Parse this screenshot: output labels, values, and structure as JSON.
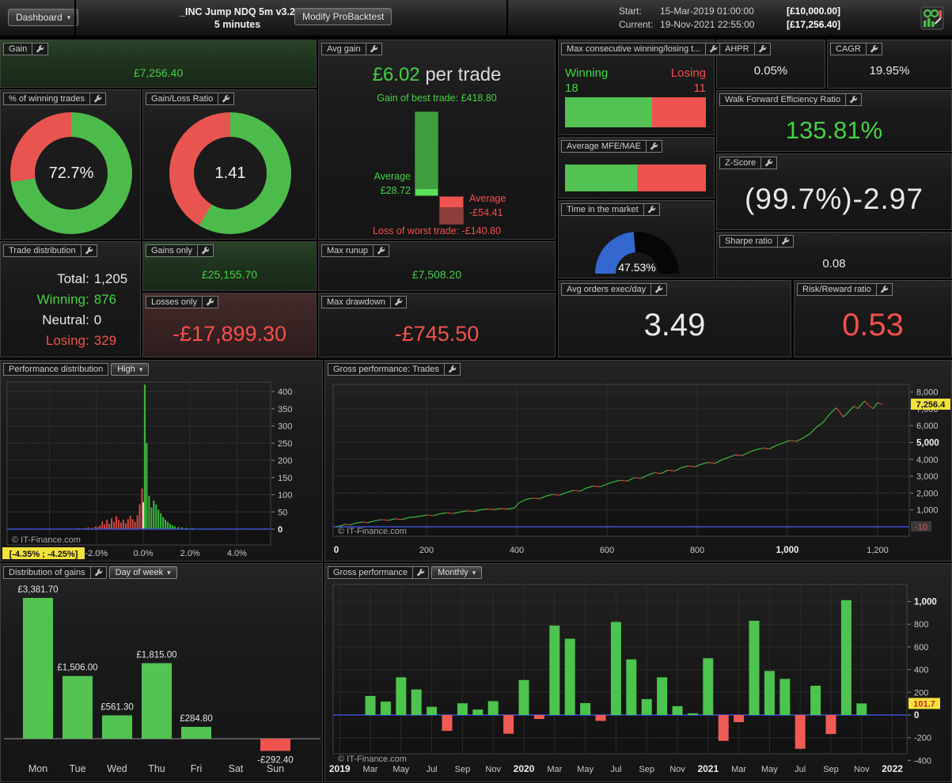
{
  "topbar": {
    "dashboard_label": "Dashboard",
    "title": "_INC Jump NDQ 5m v3.2",
    "subtitle": "5 minutes",
    "modify_button": "Modify ProBacktest",
    "start_label": "Start:",
    "start_value": "15-Mar-2019 01:00:00",
    "start_capital": "[£10,000.00]",
    "current_label": "Current:",
    "current_value": "19-Nov-2021 22:55:00",
    "current_capital": "[£17,256.40]"
  },
  "colors": {
    "green_text": "#45d145",
    "red_text": "#f2524e",
    "donut_green": "#4cbb4c",
    "donut_red": "#e85550",
    "bar_green": "#53c353",
    "bar_red": "#ef5350",
    "gauge_blue": "#3568cf",
    "zero_line_blue": "#3c4fd0",
    "tag_yellow": "#f2e33c",
    "hist_red": "#cf4a46",
    "hist_green": "#3dbb3d",
    "hist_white": "#d9d9d9"
  },
  "panels": {
    "gain": {
      "title": "Gain",
      "value": "£7,256.40"
    },
    "winning_trades": {
      "title": "% of winning trades",
      "value": "72.7%",
      "green_pct": 72.7
    },
    "gain_loss": {
      "title": "Gain/Loss Ratio",
      "value": "1.41",
      "green_pct": 58.5
    },
    "avg_gain": {
      "title": "Avg gain",
      "value": "£6.02",
      "suffix": " per trade",
      "best_trade": "Gain of best trade: £418.80",
      "avg_win_line1": "Average",
      "avg_win_line2": "£28.72",
      "avg_loss_line1": "Average",
      "avg_loss_line2": "-£54.41",
      "worst_trade": "Loss of worst trade: -£140.80"
    },
    "max_consecutive": {
      "title": "Max consecutive winning/losing t...",
      "winning_label": "Winning",
      "winning_value": "18",
      "losing_label": "Losing",
      "losing_value": "11",
      "green_pct": 62
    },
    "ahpr": {
      "title": "AHPR",
      "value": "0.05%"
    },
    "cagr": {
      "title": "CAGR",
      "value": "19.95%"
    },
    "walk_forward": {
      "title": "Walk Forward Efficiency Ratio",
      "value": "135.81%"
    },
    "mfe_mae": {
      "title": "Average MFE/MAE",
      "green_pct": 51
    },
    "z_score": {
      "title": "Z-Score",
      "value": "(99.7%)-2.97"
    },
    "time_in_market": {
      "title": "Time in the market",
      "value": "47.53%",
      "pct": 47.53
    },
    "sharpe": {
      "title": "Sharpe ratio",
      "value": "0.08"
    },
    "trade_distribution": {
      "title": "Trade distribution",
      "rows": [
        {
          "label": "Total:",
          "value": "1,205",
          "color": "white"
        },
        {
          "label": "Winning:",
          "value": "876",
          "color": "green"
        },
        {
          "label": "Neutral:",
          "value": "0",
          "color": "white"
        },
        {
          "label": "Losing:",
          "value": "329",
          "color": "red"
        }
      ]
    },
    "gains_only": {
      "title": "Gains only",
      "value": "£25,155.70"
    },
    "losses_only": {
      "title": "Losses only",
      "value": "-£17,899.30"
    },
    "max_runup": {
      "title": "Max runup",
      "value": "£7,508.20"
    },
    "max_drawdown": {
      "title": "Max drawdown",
      "value": "-£745.50"
    },
    "avg_orders": {
      "title": "Avg orders exec/day",
      "value": "3.49"
    },
    "risk_reward": {
      "title": "Risk/Reward ratio",
      "value": "0.53"
    }
  },
  "chart_data": [
    {
      "id": "performance_distribution",
      "type": "bar",
      "title": "Performance distribution",
      "dropdown": "High",
      "watermark": "© IT-Finance.com",
      "highlight_label": "[-4.35% ; -4.25%]",
      "ylim": [
        0,
        430
      ],
      "xlim": [
        -5.8,
        5.6
      ],
      "yticks": [
        [
          0,
          "0",
          true
        ],
        [
          50,
          "50",
          false
        ],
        [
          100,
          "100",
          false
        ],
        [
          150,
          "150",
          false
        ],
        [
          200,
          "200",
          false
        ],
        [
          250,
          "250",
          false
        ],
        [
          300,
          "300",
          false
        ],
        [
          350,
          "350",
          false
        ],
        [
          400,
          "400",
          false
        ]
      ],
      "xticks": [
        [
          -2,
          "-2.0%"
        ],
        [
          0,
          "0.0%"
        ],
        [
          2,
          "2.0%"
        ],
        [
          4,
          "4.0%"
        ]
      ],
      "grid_x": [
        -4,
        -2,
        0,
        2,
        4
      ],
      "bars": [
        [
          -4.3,
          2,
          "r"
        ],
        [
          -3.6,
          2,
          "r"
        ],
        [
          -3.1,
          2,
          "r"
        ],
        [
          -2.75,
          3,
          "r"
        ],
        [
          -2.5,
          3,
          "r"
        ],
        [
          -2.35,
          5,
          "r"
        ],
        [
          -2.2,
          4,
          "r"
        ],
        [
          -2.05,
          7,
          "r"
        ],
        [
          -1.95,
          6,
          "r"
        ],
        [
          -1.85,
          11,
          "r"
        ],
        [
          -1.75,
          22,
          "r"
        ],
        [
          -1.65,
          14,
          "r"
        ],
        [
          -1.55,
          27,
          "r"
        ],
        [
          -1.45,
          15,
          "r"
        ],
        [
          -1.35,
          31,
          "r"
        ],
        [
          -1.25,
          21,
          "r"
        ],
        [
          -1.15,
          37,
          "r"
        ],
        [
          -1.05,
          27,
          "r"
        ],
        [
          -0.95,
          19,
          "r"
        ],
        [
          -0.85,
          27,
          "r"
        ],
        [
          -0.75,
          17,
          "r"
        ],
        [
          -0.65,
          29,
          "r"
        ],
        [
          -0.55,
          39,
          "r"
        ],
        [
          -0.45,
          29,
          "r"
        ],
        [
          -0.35,
          21,
          "r"
        ],
        [
          -0.25,
          40,
          "r"
        ],
        [
          -0.15,
          72,
          "r"
        ],
        [
          -0.05,
          118,
          "r"
        ],
        [
          0,
          78,
          "w"
        ],
        [
          0.07,
          420,
          "g"
        ],
        [
          0.15,
          250,
          "g"
        ],
        [
          0.25,
          96,
          "g"
        ],
        [
          0.35,
          63,
          "g"
        ],
        [
          0.45,
          83,
          "g"
        ],
        [
          0.55,
          71,
          "g"
        ],
        [
          0.65,
          57,
          "g"
        ],
        [
          0.75,
          46,
          "g"
        ],
        [
          0.85,
          35,
          "g"
        ],
        [
          0.95,
          27,
          "g"
        ],
        [
          1.05,
          21,
          "g"
        ],
        [
          1.15,
          15,
          "g"
        ],
        [
          1.25,
          11,
          "g"
        ],
        [
          1.35,
          8,
          "g"
        ],
        [
          1.5,
          6,
          "g"
        ],
        [
          1.65,
          5,
          "g"
        ],
        [
          1.85,
          4,
          "g"
        ],
        [
          2.1,
          3,
          "g"
        ],
        [
          2.45,
          2,
          "g"
        ],
        [
          2.9,
          2,
          "g"
        ],
        [
          3.4,
          2,
          "g"
        ],
        [
          4.4,
          2,
          "g"
        ],
        [
          5.2,
          2,
          "g"
        ]
      ]
    },
    {
      "id": "gross_performance_trades",
      "type": "line",
      "title": "Gross performance: Trades",
      "watermark": "© IT-Finance.com",
      "current_value_label": "7,256.4",
      "zero_line_label": "-10",
      "ylim": [
        -300,
        8400
      ],
      "xlim": [
        0,
        1270
      ],
      "yticks": [
        [
          1000,
          "1,000",
          false
        ],
        [
          2000,
          "2,000",
          false
        ],
        [
          3000,
          "3,000",
          false
        ],
        [
          4000,
          "4,000",
          false
        ],
        [
          5000,
          "5,000",
          true
        ],
        [
          6000,
          "6,000",
          false
        ],
        [
          7000,
          "7,000",
          false
        ],
        [
          8000,
          "8,000",
          false
        ]
      ],
      "xticks": [
        [
          0,
          "0",
          true
        ],
        [
          200,
          "200",
          false
        ],
        [
          400,
          "400",
          false
        ],
        [
          600,
          "600",
          false
        ],
        [
          800,
          "800",
          false
        ],
        [
          1000,
          "1,000",
          true
        ],
        [
          1200,
          "1,200",
          false
        ]
      ],
      "points": [
        [
          0,
          -10
        ],
        [
          10,
          60
        ],
        [
          20,
          150
        ],
        [
          30,
          110
        ],
        [
          45,
          230
        ],
        [
          60,
          280
        ],
        [
          70,
          240
        ],
        [
          85,
          350
        ],
        [
          100,
          420
        ],
        [
          115,
          380
        ],
        [
          130,
          470
        ],
        [
          145,
          430
        ],
        [
          160,
          540
        ],
        [
          175,
          580
        ],
        [
          190,
          640
        ],
        [
          200,
          700
        ],
        [
          215,
          660
        ],
        [
          230,
          770
        ],
        [
          245,
          830
        ],
        [
          260,
          790
        ],
        [
          275,
          880
        ],
        [
          290,
          940
        ],
        [
          305,
          900
        ],
        [
          320,
          1010
        ],
        [
          335,
          1060
        ],
        [
          350,
          1020
        ],
        [
          365,
          1090
        ],
        [
          380,
          1050
        ],
        [
          395,
          1120
        ],
        [
          405,
          1420
        ],
        [
          420,
          1620
        ],
        [
          435,
          1700
        ],
        [
          450,
          1660
        ],
        [
          465,
          1820
        ],
        [
          480,
          1920
        ],
        [
          495,
          1870
        ],
        [
          510,
          2030
        ],
        [
          525,
          2160
        ],
        [
          540,
          2110
        ],
        [
          555,
          2300
        ],
        [
          570,
          2420
        ],
        [
          585,
          2370
        ],
        [
          600,
          2530
        ],
        [
          615,
          2670
        ],
        [
          630,
          2760
        ],
        [
          645,
          2710
        ],
        [
          660,
          2910
        ],
        [
          675,
          2860
        ],
        [
          690,
          3060
        ],
        [
          705,
          3210
        ],
        [
          720,
          3160
        ],
        [
          735,
          3360
        ],
        [
          750,
          3310
        ],
        [
          765,
          3510
        ],
        [
          780,
          3610
        ],
        [
          795,
          3560
        ],
        [
          810,
          3720
        ],
        [
          825,
          3820
        ],
        [
          840,
          3770
        ],
        [
          855,
          3970
        ],
        [
          870,
          4120
        ],
        [
          885,
          4270
        ],
        [
          900,
          4220
        ],
        [
          915,
          4420
        ],
        [
          930,
          4570
        ],
        [
          945,
          4670
        ],
        [
          960,
          4620
        ],
        [
          975,
          4820
        ],
        [
          990,
          4970
        ],
        [
          1005,
          5120
        ],
        [
          1020,
          5070
        ],
        [
          1035,
          5270
        ],
        [
          1050,
          5520
        ],
        [
          1065,
          5920
        ],
        [
          1080,
          6220
        ],
        [
          1090,
          6560
        ],
        [
          1100,
          6860
        ],
        [
          1108,
          7060
        ],
        [
          1116,
          6820
        ],
        [
          1124,
          6520
        ],
        [
          1132,
          6720
        ],
        [
          1140,
          6960
        ],
        [
          1148,
          7160
        ],
        [
          1156,
          7010
        ],
        [
          1164,
          7260
        ],
        [
          1172,
          7460
        ],
        [
          1180,
          7210
        ],
        [
          1190,
          7010
        ],
        [
          1200,
          7360
        ],
        [
          1210,
          7256.4
        ]
      ]
    },
    {
      "id": "distribution_of_gains",
      "type": "bar",
      "title": "Distribution of gains",
      "dropdown": "Day of week",
      "categories": [
        "Mon",
        "Tue",
        "Wed",
        "Thu",
        "Fri",
        "Sat",
        "Sun"
      ],
      "values": [
        3381.7,
        1506.0,
        561.3,
        1815.0,
        284.8,
        0,
        -292.4
      ],
      "value_labels": [
        "£3,381.70",
        "£1,506.00",
        "£561.30",
        "£1,815.00",
        "£284.80",
        "",
        "-£292.40"
      ]
    },
    {
      "id": "gross_performance_monthly",
      "type": "bar",
      "title": "Gross performance",
      "dropdown": "Monthly",
      "watermark": "© IT-Finance.com",
      "current_value_label": "101.7",
      "start_month": "Mar-2019",
      "ylim": [
        -450,
        1150
      ],
      "yticks": [
        [
          -400,
          "-400",
          false
        ],
        [
          -200,
          "-200",
          false
        ],
        [
          0,
          "0",
          true
        ],
        [
          200,
          "200",
          false
        ],
        [
          400,
          "400",
          false
        ],
        [
          600,
          "600",
          false
        ],
        [
          800,
          "800",
          false
        ],
        [
          1000,
          "1,000",
          true
        ]
      ],
      "values": [
        168,
        118,
        332,
        225,
        72,
        -140,
        103,
        48,
        122,
        -165,
        308,
        -35,
        788,
        672,
        105,
        -52,
        820,
        490,
        140,
        332,
        78,
        15,
        500,
        -228,
        -63,
        830,
        388,
        318,
        -298,
        258,
        -168,
        1012,
        101.7
      ],
      "xticks": [
        [
          -2,
          "2019",
          true
        ],
        [
          0,
          "Mar",
          false
        ],
        [
          2,
          "May",
          false
        ],
        [
          4,
          "Jul",
          false
        ],
        [
          6,
          "Sep",
          false
        ],
        [
          8,
          "Nov",
          false
        ],
        [
          10,
          "2020",
          true
        ],
        [
          12,
          "Mar",
          false
        ],
        [
          14,
          "May",
          false
        ],
        [
          16,
          "Jul",
          false
        ],
        [
          18,
          "Sep",
          false
        ],
        [
          20,
          "Nov",
          false
        ],
        [
          22,
          "2021",
          true
        ],
        [
          24,
          "Mar",
          false
        ],
        [
          26,
          "May",
          false
        ],
        [
          28,
          "Jul",
          false
        ],
        [
          30,
          "Sep",
          false
        ],
        [
          32,
          "Nov",
          false
        ],
        [
          34,
          "2022",
          true
        ]
      ]
    }
  ]
}
